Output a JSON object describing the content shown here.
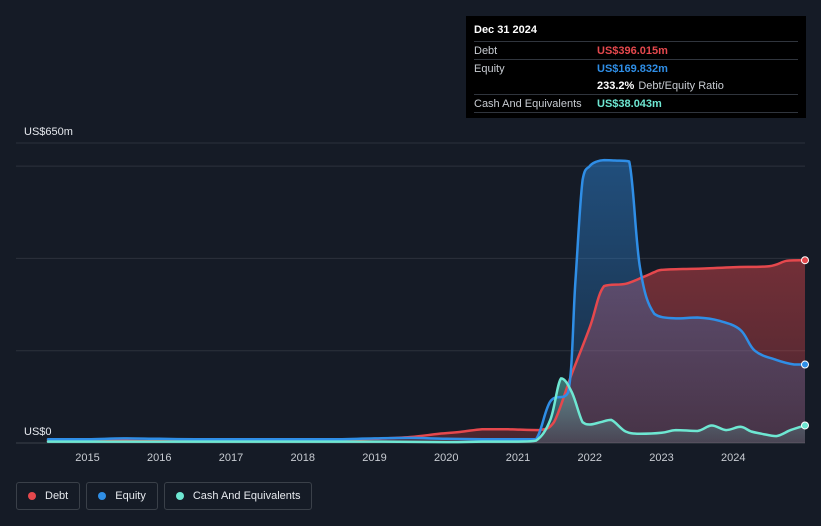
{
  "tooltip": {
    "date": "Dec 31 2024",
    "debt_label": "Debt",
    "debt_value": "US$396.015m",
    "equity_label": "Equity",
    "equity_value": "US$169.832m",
    "ratio_value": "233.2%",
    "ratio_label": "Debt/Equity Ratio",
    "cash_label": "Cash And Equivalents",
    "cash_value": "US$38.043m"
  },
  "legend": {
    "debt": "Debt",
    "equity": "Equity",
    "cash": "Cash And Equivalents"
  },
  "colors": {
    "debt": "#e5484d",
    "equity": "#2f8ee6",
    "cash": "#6ee7d2",
    "background": "#151b26",
    "grid": "#2c323c"
  },
  "chart_data": {
    "type": "area",
    "title": "",
    "ylabel_top": "US$650m",
    "ylabel_bottom": "US$0",
    "ylim": [
      0,
      650
    ],
    "xlim": [
      2014.45,
      2025.0
    ],
    "x_ticks": [
      "2015",
      "2016",
      "2017",
      "2018",
      "2019",
      "2020",
      "2021",
      "2022",
      "2023",
      "2024"
    ],
    "x_tick_values": [
      2015,
      2016,
      2017,
      2018,
      2019,
      2020,
      2021,
      2022,
      2023,
      2024
    ],
    "series": [
      {
        "name": "Debt",
        "x": [
          2014.45,
          2015.0,
          2015.5,
          2016.0,
          2016.5,
          2017.0,
          2017.5,
          2018.0,
          2018.5,
          2019.0,
          2019.5,
          2019.9,
          2020.2,
          2020.5,
          2020.8,
          2021.0,
          2021.3,
          2021.5,
          2021.75,
          2022.0,
          2022.2,
          2022.5,
          2022.75,
          2022.9,
          2023.0,
          2023.3,
          2023.6,
          2024.0,
          2024.5,
          2024.75,
          2025.0
        ],
        "y": [
          5,
          5,
          5,
          4,
          4,
          5,
          5,
          6,
          7,
          9,
          13,
          20,
          24,
          30,
          30,
          29,
          28,
          45,
          150,
          250,
          340,
          345,
          360,
          370,
          375,
          377,
          378,
          381,
          383,
          395,
          396
        ]
      },
      {
        "name": "Equity",
        "x": [
          2014.45,
          2015.0,
          2015.5,
          2016.0,
          2016.5,
          2017.0,
          2017.5,
          2018.0,
          2018.5,
          2019.0,
          2019.5,
          2020.0,
          2020.5,
          2021.0,
          2021.25,
          2021.45,
          2021.7,
          2021.8,
          2021.9,
          2022.0,
          2022.1,
          2022.2,
          2022.35,
          2022.55,
          2022.7,
          2022.9,
          2023.2,
          2023.5,
          2023.8,
          2024.1,
          2024.3,
          2024.6,
          2024.85,
          2025.0
        ],
        "y": [
          8,
          8,
          10,
          9,
          8,
          8,
          8,
          8,
          8,
          10,
          11,
          9,
          8,
          8,
          8,
          90,
          110,
          350,
          570,
          600,
          610,
          613,
          612,
          610,
          380,
          280,
          270,
          272,
          265,
          245,
          200,
          180,
          170,
          170
        ]
      },
      {
        "name": "Cash And Equivalents",
        "x": [
          2014.45,
          2015.0,
          2016.0,
          2017.0,
          2018.0,
          2019.0,
          2020.0,
          2020.5,
          2021.0,
          2021.25,
          2021.45,
          2021.6,
          2021.75,
          2021.9,
          2022.0,
          2022.15,
          2022.3,
          2022.5,
          2022.7,
          2023.0,
          2023.2,
          2023.5,
          2023.7,
          2023.9,
          2024.1,
          2024.25,
          2024.4,
          2024.6,
          2024.8,
          2025.0
        ],
        "y": [
          3,
          3,
          3,
          3,
          3,
          3,
          2,
          3,
          3,
          5,
          50,
          140,
          110,
          45,
          40,
          45,
          50,
          25,
          20,
          22,
          28,
          26,
          38,
          28,
          35,
          25,
          20,
          15,
          28,
          38
        ]
      }
    ]
  }
}
